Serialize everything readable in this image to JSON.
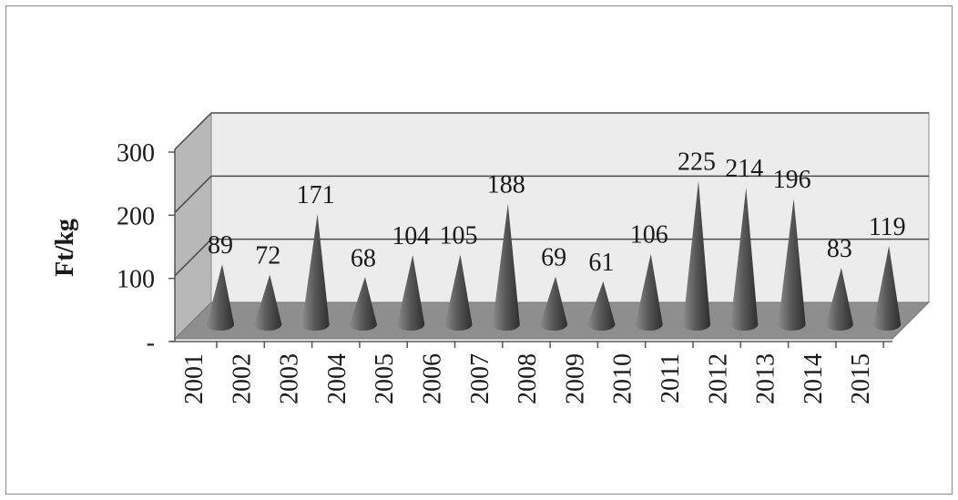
{
  "chart_data": {
    "type": "bar",
    "bar_shape": "cone",
    "three_d": true,
    "categories": [
      "2001",
      "2002",
      "2003",
      "2004",
      "2005",
      "2006",
      "2007",
      "2008",
      "2009",
      "2010",
      "2011",
      "2012",
      "2013",
      "2014",
      "2015"
    ],
    "values": [
      89,
      72,
      171,
      68,
      104,
      105,
      188,
      69,
      61,
      106,
      225,
      214,
      196,
      83,
      119
    ],
    "data_labels": [
      "89",
      "72",
      "171",
      "68",
      "104",
      "105",
      "188",
      "69",
      "61",
      "106",
      "225",
      "214",
      "196",
      "83",
      "119"
    ],
    "ylabel": "Ft/kg",
    "yticks": [
      {
        "value": 0,
        "label": "-"
      },
      {
        "value": 100,
        "label": "100"
      },
      {
        "value": 200,
        "label": "200"
      },
      {
        "value": 300,
        "label": "300"
      }
    ],
    "ylim": [
      0,
      300
    ],
    "grid": true,
    "legend": "none",
    "colors": {
      "bar": "#555555",
      "bar_dark": "#2e2e2e",
      "bar_light": "#8c8c8c",
      "floor": "#8e8e8e",
      "back_wall": "#ececec",
      "side_wall": "#b8b8b8",
      "gridline": "#4a4a4a",
      "frame": "#8a8a8a"
    }
  }
}
